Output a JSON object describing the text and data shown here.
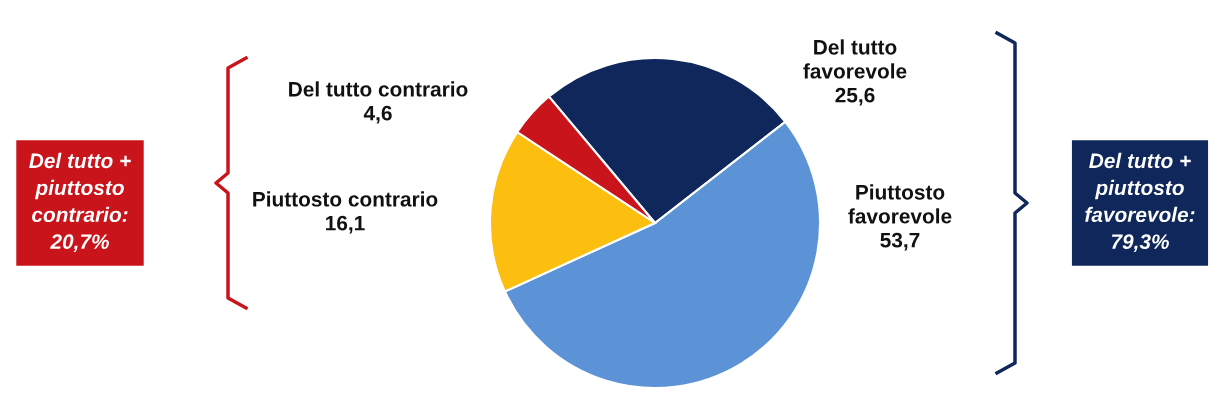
{
  "chart_data": {
    "type": "pie",
    "categories": [
      "Del tutto\nfavorevole",
      "Piuttosto\nfavorevole",
      "Piuttosto contrario",
      "Del tutto contrario"
    ],
    "values": [
      25.6,
      53.7,
      16.1,
      4.6
    ],
    "value_labels": [
      "25,6",
      "53,7",
      "16,1",
      "4,6"
    ],
    "colors": [
      "#10275c",
      "#5b93d6",
      "#fcbf0f",
      "#c8141a"
    ],
    "annotations": [
      "Del tutto +\npiuttosto\ncontrario:\n20,7%",
      "Del tutto +\npiuttosto\nfavorevole:\n79,3%"
    ]
  }
}
